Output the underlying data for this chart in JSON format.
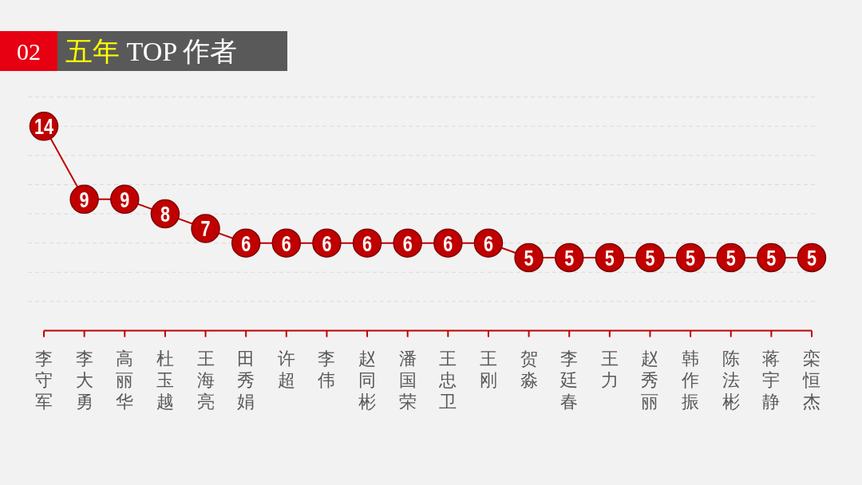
{
  "chart_data": {
    "type": "line",
    "title": "02 五年 TOP 作者",
    "categories": [
      "李守军",
      "李大勇",
      "高丽华",
      "杜玉越",
      "王海亮",
      "田秀娟",
      "许超",
      "李伟",
      "赵同彬",
      "潘国荣",
      "王忠卫",
      "王刚",
      "贺淼",
      "李廷春",
      "王力",
      "赵秀丽",
      "韩作振",
      "陈法彬",
      "蒋宇静",
      "栾恒杰"
    ],
    "series": [
      {
        "color": "#c00000",
        "values": [
          14,
          9,
          9,
          8,
          7,
          6,
          6,
          6,
          6,
          6,
          6,
          6,
          5,
          5,
          5,
          5,
          5,
          5,
          5,
          5
        ]
      }
    ],
    "ylim": [
      0,
      16
    ],
    "yticks": [
      {
        "value": 0,
        "label": null
      },
      {
        "value": 2,
        "label": null
      },
      {
        "value": 4,
        "label": null
      },
      {
        "value": 6,
        "label": null
      },
      {
        "value": 8,
        "label": null
      },
      {
        "value": 10,
        "label": null
      },
      {
        "value": 12,
        "label": null
      },
      {
        "value": 14,
        "label": null
      },
      {
        "value": 16,
        "label": null
      }
    ],
    "grid": "y",
    "marker": "circle",
    "line_style": "solid",
    "data_labels": true,
    "tick_labels": "x"
  }
}
